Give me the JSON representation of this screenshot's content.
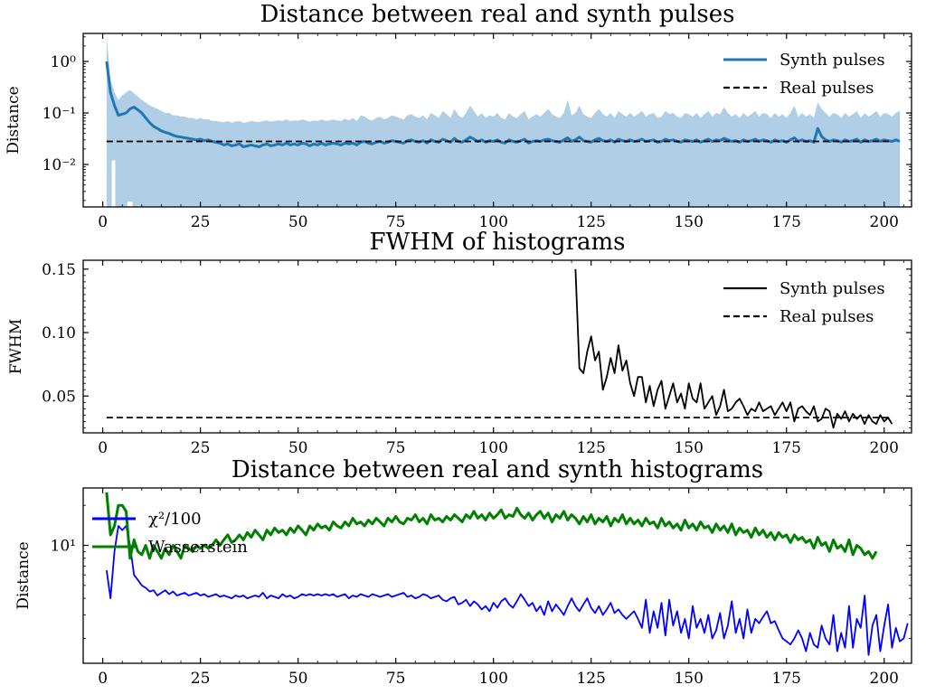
{
  "chart_data": [
    {
      "type": "line",
      "title": "Distance between real and synth pulses",
      "ylabel": "Distance",
      "xlabel": "",
      "yscale": "log",
      "xlim": [
        -5,
        207
      ],
      "ylim": [
        0.0015,
        3.5
      ],
      "xticks": [
        0,
        25,
        50,
        75,
        100,
        125,
        150,
        175,
        200
      ],
      "xtick_labels": [
        "0",
        "25",
        "50",
        "75",
        "100",
        "125",
        "150",
        "175",
        "200"
      ],
      "yticks": [
        1,
        0.1,
        0.01
      ],
      "ytick_labels": [
        "10⁰",
        "10⁻¹",
        "10⁻²"
      ],
      "legend_position": "top-right",
      "series": [
        {
          "name": "Synth pulses",
          "color": "#1f77b4",
          "style": "solid",
          "x_start": 1,
          "x_step": 1,
          "values": [
            1.0,
            0.25,
            0.14,
            0.09,
            0.095,
            0.1,
            0.12,
            0.13,
            0.115,
            0.1,
            0.08,
            0.065,
            0.055,
            0.05,
            0.045,
            0.042,
            0.04,
            0.037,
            0.035,
            0.034,
            0.033,
            0.032,
            0.031,
            0.03,
            0.031,
            0.029,
            0.03,
            0.028,
            0.027,
            0.026,
            0.024,
            0.025,
            0.023,
            0.024,
            0.025,
            0.022,
            0.023,
            0.024,
            0.023,
            0.022,
            0.024,
            0.025,
            0.023,
            0.024,
            0.025,
            0.024,
            0.026,
            0.024,
            0.025,
            0.024,
            0.026,
            0.025,
            0.023,
            0.025,
            0.024,
            0.026,
            0.024,
            0.025,
            0.026,
            0.025,
            0.024,
            0.026,
            0.025,
            0.026,
            0.024,
            0.027,
            0.028,
            0.026,
            0.025,
            0.027,
            0.028,
            0.026,
            0.027,
            0.029,
            0.028,
            0.027,
            0.026,
            0.029,
            0.03,
            0.028,
            0.027,
            0.029,
            0.026,
            0.03,
            0.028,
            0.027,
            0.031,
            0.029,
            0.027,
            0.032,
            0.028,
            0.027,
            0.03,
            0.034,
            0.031,
            0.028,
            0.03,
            0.027,
            0.029,
            0.028,
            0.03,
            0.027,
            0.026,
            0.03,
            0.028,
            0.027,
            0.029,
            0.031,
            0.026,
            0.028,
            0.029,
            0.028,
            0.03,
            0.031,
            0.029,
            0.028,
            0.027,
            0.03,
            0.033,
            0.028,
            0.03,
            0.034,
            0.029,
            0.028,
            0.027,
            0.03,
            0.032,
            0.029,
            0.028,
            0.03,
            0.027,
            0.031,
            0.029,
            0.028,
            0.03,
            0.028,
            0.029,
            0.031,
            0.028,
            0.029,
            0.03,
            0.027,
            0.028,
            0.031,
            0.029,
            0.03,
            0.028,
            0.027,
            0.03,
            0.029,
            0.028,
            0.03,
            0.027,
            0.029,
            0.031,
            0.028,
            0.03,
            0.029,
            0.032,
            0.03,
            0.028,
            0.029,
            0.027,
            0.03,
            0.028,
            0.029,
            0.031,
            0.028,
            0.03,
            0.029,
            0.027,
            0.03,
            0.028,
            0.029,
            0.027,
            0.03,
            0.033,
            0.028,
            0.03,
            0.028,
            0.029,
            0.027,
            0.05,
            0.035,
            0.03,
            0.028,
            0.03,
            0.029,
            0.027,
            0.03,
            0.028,
            0.029,
            0.031,
            0.027,
            0.03,
            0.028,
            0.029,
            0.031,
            0.028,
            0.03,
            0.029,
            0.028,
            0.03,
            0.028
          ]
        },
        {
          "name": "Real pulses",
          "color": "#000000",
          "style": "dashed",
          "x": [
            1,
            202
          ],
          "values": [
            0.028,
            0.028
          ]
        }
      ],
      "band": {
        "x_start": 1,
        "x_step": 1,
        "upper": [
          3.0,
          0.45,
          0.25,
          0.18,
          0.22,
          0.25,
          0.28,
          0.24,
          0.21,
          0.18,
          0.16,
          0.14,
          0.13,
          0.12,
          0.11,
          0.1,
          0.1,
          0.09,
          0.09,
          0.085,
          0.085,
          0.08,
          0.08,
          0.075,
          0.08,
          0.075,
          0.075,
          0.07,
          0.07,
          0.068,
          0.066,
          0.07,
          0.065,
          0.068,
          0.07,
          0.065,
          0.066,
          0.07,
          0.068,
          0.066,
          0.07,
          0.072,
          0.068,
          0.07,
          0.072,
          0.07,
          0.075,
          0.07,
          0.072,
          0.07,
          0.075,
          0.072,
          0.068,
          0.072,
          0.07,
          0.075,
          0.07,
          0.072,
          0.075,
          0.072,
          0.07,
          0.078,
          0.072,
          0.08,
          0.07,
          0.09,
          0.085,
          0.075,
          0.072,
          0.08,
          0.085,
          0.075,
          0.08,
          0.09,
          0.085,
          0.08,
          0.075,
          0.09,
          0.095,
          0.085,
          0.08,
          0.09,
          0.075,
          0.1,
          0.09,
          0.08,
          0.11,
          0.095,
          0.08,
          0.12,
          0.09,
          0.08,
          0.1,
          0.14,
          0.11,
          0.085,
          0.1,
          0.08,
          0.09,
          0.085,
          0.1,
          0.08,
          0.075,
          0.1,
          0.085,
          0.08,
          0.095,
          0.11,
          0.075,
          0.085,
          0.095,
          0.085,
          0.1,
          0.12,
          0.095,
          0.085,
          0.08,
          0.1,
          0.18,
          0.09,
          0.1,
          0.14,
          0.095,
          0.085,
          0.08,
          0.1,
          0.12,
          0.095,
          0.085,
          0.1,
          0.08,
          0.11,
          0.095,
          0.085,
          0.1,
          0.085,
          0.095,
          0.11,
          0.085,
          0.095,
          0.1,
          0.08,
          0.085,
          0.11,
          0.095,
          0.1,
          0.085,
          0.08,
          0.1,
          0.095,
          0.085,
          0.1,
          0.08,
          0.095,
          0.11,
          0.085,
          0.1,
          0.095,
          0.13,
          0.1,
          0.085,
          0.095,
          0.08,
          0.1,
          0.085,
          0.095,
          0.11,
          0.085,
          0.1,
          0.095,
          0.08,
          0.1,
          0.085,
          0.095,
          0.08,
          0.1,
          0.14,
          0.085,
          0.1,
          0.085,
          0.095,
          0.08,
          0.16,
          0.12,
          0.1,
          0.085,
          0.1,
          0.095,
          0.08,
          0.1,
          0.085,
          0.095,
          0.11,
          0.08,
          0.1,
          0.085,
          0.095,
          0.11,
          0.085,
          0.1,
          0.095,
          0.085,
          0.1,
          0.11
        ]
      }
    },
    {
      "type": "line",
      "title": "FWHM of histograms",
      "ylabel": "FWHM",
      "xlabel": "",
      "yscale": "linear",
      "xlim": [
        -5,
        207
      ],
      "ylim": [
        0.021,
        0.157
      ],
      "xticks": [
        0,
        25,
        50,
        75,
        100,
        125,
        150,
        175,
        200
      ],
      "xtick_labels": [
        "0",
        "25",
        "50",
        "75",
        "100",
        "125",
        "150",
        "175",
        "200"
      ],
      "yticks": [
        0.15,
        0.1,
        0.05
      ],
      "ytick_labels": [
        "0.15",
        "0.10",
        "0.05"
      ],
      "legend_position": "top-right",
      "series": [
        {
          "name": "Synth pulses",
          "color": "#000000",
          "style": "solid",
          "x_start": 121,
          "x_step": 1,
          "values": [
            0.15,
            0.072,
            0.068,
            0.085,
            0.097,
            0.078,
            0.085,
            0.055,
            0.065,
            0.08,
            0.068,
            0.09,
            0.07,
            0.078,
            0.06,
            0.05,
            0.065,
            0.065,
            0.045,
            0.058,
            0.042,
            0.055,
            0.062,
            0.04,
            0.05,
            0.06,
            0.045,
            0.052,
            0.04,
            0.06,
            0.048,
            0.045,
            0.06,
            0.04,
            0.045,
            0.05,
            0.035,
            0.042,
            0.055,
            0.038,
            0.04,
            0.045,
            0.048,
            0.042,
            0.035,
            0.04,
            0.038,
            0.045,
            0.038,
            0.04,
            0.042,
            0.035,
            0.04,
            0.045,
            0.038,
            0.045,
            0.03,
            0.04,
            0.042,
            0.038,
            0.035,
            0.042,
            0.03,
            0.032,
            0.04,
            0.038,
            0.025,
            0.036,
            0.032,
            0.038,
            0.03,
            0.036,
            0.032,
            0.035,
            0.028,
            0.035,
            0.03,
            0.028,
            0.035,
            0.03,
            0.033,
            0.028
          ]
        },
        {
          "name": "Real pulses",
          "color": "#000000",
          "style": "dashed",
          "x": [
            1,
            202
          ],
          "values": [
            0.033,
            0.033
          ]
        }
      ]
    },
    {
      "type": "line",
      "title": "Distance between real and synth histograms",
      "ylabel": "Distance",
      "xlabel": "",
      "yscale": "log",
      "xlim": [
        -5,
        207
      ],
      "ylim": [
        1.3,
        27
      ],
      "xticks": [
        0,
        25,
        50,
        75,
        100,
        125,
        150,
        175,
        200
      ],
      "xtick_labels": [
        "0",
        "25",
        "50",
        "75",
        "100",
        "125",
        "150",
        "175",
        "200"
      ],
      "yticks": [
        10
      ],
      "ytick_labels": [
        "10¹"
      ],
      "legend_position": "top-left",
      "series": [
        {
          "name": "χ²/100",
          "color": "#0000ff",
          "style": "solid",
          "x_start": 1,
          "x_step": 1,
          "values": [
            6.5,
            4.0,
            9.0,
            14.0,
            13.0,
            14.0,
            10.0,
            6.0,
            5.5,
            5.0,
            4.8,
            4.5,
            4.6,
            4.2,
            4.4,
            4.6,
            4.3,
            4.5,
            4.2,
            4.3,
            4.4,
            4.2,
            4.3,
            4.4,
            4.2,
            4.3,
            4.1,
            4.2,
            4.3,
            4.1,
            4.2,
            4.1,
            4.0,
            4.2,
            4.1,
            4.2,
            4.0,
            4.1,
            4.2,
            4.1,
            4.4,
            4.0,
            4.2,
            4.1,
            4.0,
            4.3,
            4.1,
            4.2,
            4.0,
            4.1,
            4.3,
            4.2,
            4.3,
            4.2,
            4.3,
            4.2,
            4.3,
            4.2,
            4.3,
            4.1,
            4.2,
            4.3,
            4.0,
            4.2,
            4.1,
            4.3,
            4.2,
            4.1,
            4.3,
            4.2,
            4.1,
            4.2,
            4.3,
            4.1,
            4.2,
            4.3,
            4.4,
            4.1,
            4.2,
            4.0,
            4.1,
            4.3,
            4.2,
            4.0,
            4.1,
            4.2,
            3.9,
            3.8,
            4.0,
            4.1,
            3.6,
            3.7,
            3.9,
            3.5,
            3.8,
            3.6,
            3.3,
            3.5,
            3.2,
            3.7,
            3.4,
            3.8,
            4.0,
            3.6,
            3.4,
            3.8,
            4.3,
            3.9,
            3.5,
            3.7,
            3.2,
            3.5,
            3.0,
            3.8,
            3.2,
            3.6,
            3.3,
            3.0,
            3.5,
            4.0,
            3.5,
            3.2,
            3.6,
            4.0,
            3.4,
            3.1,
            3.5,
            3.0,
            3.3,
            3.7,
            3.1,
            3.3,
            3.0,
            2.8,
            3.0,
            3.2,
            2.8,
            2.4,
            3.9,
            2.2,
            3.2,
            2.4,
            3.7,
            2.1,
            3.9,
            2.5,
            3.2,
            2.2,
            2.8,
            2.0,
            3.5,
            2.4,
            2.8,
            2.2,
            3.0,
            2.0,
            2.3,
            3.1,
            2.0,
            2.5,
            3.8,
            2.2,
            2.8,
            2.0,
            3.3,
            2.2,
            2.8,
            2.6,
            2.9,
            3.2,
            2.6,
            2.7,
            2.3,
            2.0,
            1.9,
            1.8,
            2.0,
            2.3,
            2.0,
            1.6,
            2.2,
            1.8,
            1.7,
            2.5,
            2.0,
            1.8,
            3.0,
            1.6,
            2.2,
            1.7,
            3.5,
            1.7,
            2.8,
            2.4,
            4.2,
            1.5,
            2.5,
            3.0,
            1.6,
            2.5,
            3.6,
            1.7,
            2.4,
            1.9,
            2.0,
            2.6
          ]
        },
        {
          "name": "Wasserstein",
          "color": "#008000",
          "style": "solid",
          "x_start": 1,
          "x_step": 1,
          "values": [
            25.0,
            12.0,
            14.0,
            20.0,
            20.0,
            18.0,
            8.0,
            11.0,
            9.0,
            8.5,
            10.0,
            8.0,
            10.0,
            9.0,
            8.0,
            9.5,
            8.5,
            10.0,
            9.0,
            8.0,
            10.0,
            9.5,
            9.0,
            10.0,
            9.5,
            10.0,
            9.5,
            10.0,
            11.0,
            10.0,
            11.0,
            12.0,
            10.5,
            11.0,
            12.0,
            11.0,
            12.5,
            11.5,
            13.0,
            12.0,
            11.0,
            13.0,
            12.0,
            13.5,
            12.5,
            13.0,
            12.0,
            13.5,
            12.5,
            14.0,
            13.0,
            12.0,
            14.0,
            13.0,
            14.5,
            13.5,
            14.0,
            13.0,
            15.0,
            14.0,
            13.5,
            15.0,
            14.0,
            16.0,
            14.5,
            15.0,
            14.0,
            15.5,
            14.5,
            16.0,
            15.0,
            14.0,
            16.0,
            15.0,
            16.5,
            15.0,
            14.5,
            16.0,
            15.5,
            17.0,
            15.0,
            16.0,
            14.5,
            17.0,
            15.5,
            16.0,
            15.0,
            16.5,
            15.5,
            17.0,
            16.0,
            15.0,
            17.0,
            16.0,
            18.0,
            16.0,
            17.0,
            15.5,
            17.5,
            16.0,
            17.0,
            18.5,
            16.0,
            17.0,
            16.5,
            19.0,
            17.0,
            16.0,
            17.5,
            15.5,
            17.0,
            18.0,
            16.0,
            17.5,
            15.0,
            17.0,
            16.0,
            18.0,
            15.5,
            17.0,
            16.0,
            14.5,
            16.5,
            15.0,
            17.0,
            14.5,
            16.0,
            15.0,
            16.5,
            14.0,
            16.0,
            15.0,
            17.0,
            14.5,
            16.0,
            14.5,
            15.5,
            14.0,
            16.0,
            14.5,
            15.0,
            13.5,
            16.0,
            14.0,
            15.0,
            13.5,
            14.5,
            13.0,
            15.5,
            13.5,
            14.5,
            13.0,
            15.0,
            13.5,
            14.0,
            12.5,
            14.5,
            13.0,
            14.0,
            12.5,
            14.5,
            12.0,
            13.5,
            12.5,
            13.0,
            11.5,
            13.5,
            12.0,
            13.0,
            11.5,
            12.5,
            11.0,
            12.5,
            11.5,
            12.0,
            10.5,
            12.0,
            11.0,
            11.5,
            10.5,
            11.0,
            9.5,
            11.5,
            10.0,
            10.5,
            9.0,
            11.0,
            9.5,
            10.0,
            9.0,
            11.0,
            8.5,
            10.0,
            9.5,
            8.5,
            9.0,
            8.0,
            9.0
          ]
        }
      ]
    }
  ]
}
